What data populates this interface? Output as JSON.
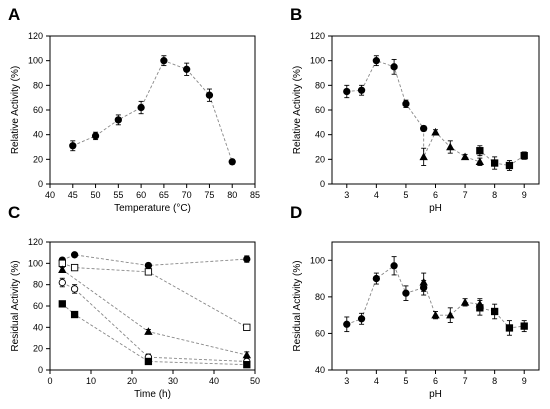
{
  "chart_data": [
    {
      "panel": "A",
      "type": "scatter",
      "title": "",
      "xlabel": "Temperature (°C)",
      "ylabel": "Relative Activity (%)",
      "xlim": [
        40,
        85
      ],
      "ylim": [
        0,
        120
      ],
      "xticks": [
        40,
        45,
        50,
        55,
        60,
        65,
        70,
        75,
        80,
        85
      ],
      "yticks": [
        0,
        20,
        40,
        60,
        80,
        100,
        120
      ],
      "grid": false,
      "series": [
        {
          "marker": "filled-circle",
          "connect": true,
          "points": [
            {
              "x": 45,
              "y": 31,
              "err": 4
            },
            {
              "x": 50,
              "y": 39,
              "err": 3
            },
            {
              "x": 55,
              "y": 52,
              "err": 4
            },
            {
              "x": 60,
              "y": 62,
              "err": 5
            },
            {
              "x": 65,
              "y": 100,
              "err": 4
            },
            {
              "x": 70,
              "y": 93,
              "err": 5
            },
            {
              "x": 75,
              "y": 72,
              "err": 5
            },
            {
              "x": 80,
              "y": 18,
              "err": 2
            }
          ]
        }
      ]
    },
    {
      "panel": "B",
      "type": "scatter",
      "title": "",
      "xlabel": "pH",
      "ylabel": "Relative Activity (%)",
      "xlim": [
        2.5,
        9.5
      ],
      "ylim": [
        0,
        120
      ],
      "xticks": [
        3,
        4,
        5,
        6,
        7,
        8,
        9
      ],
      "yticks": [
        0,
        20,
        40,
        60,
        80,
        100,
        120
      ],
      "grid": false,
      "series": [
        {
          "marker": "filled-circle",
          "connect": true,
          "points": [
            {
              "x": 3.0,
              "y": 75,
              "err": 5
            },
            {
              "x": 3.5,
              "y": 76,
              "err": 4
            },
            {
              "x": 4.0,
              "y": 100,
              "err": 4
            },
            {
              "x": 4.6,
              "y": 95,
              "err": 6
            },
            {
              "x": 5.0,
              "y": 65,
              "err": 3
            },
            {
              "x": 5.6,
              "y": 45,
              "err": 2
            }
          ]
        },
        {
          "marker": "filled-triangle",
          "connect": true,
          "points": [
            {
              "x": 5.6,
              "y": 22,
              "err": 7
            },
            {
              "x": 6.0,
              "y": 42,
              "err": 2
            },
            {
              "x": 6.5,
              "y": 30,
              "err": 5
            },
            {
              "x": 7.0,
              "y": 22,
              "err": 2
            },
            {
              "x": 7.5,
              "y": 18,
              "err": 3
            }
          ]
        },
        {
          "marker": "filled-square",
          "connect": true,
          "points": [
            {
              "x": 7.5,
              "y": 27,
              "err": 4
            },
            {
              "x": 8.0,
              "y": 17,
              "err": 5
            },
            {
              "x": 8.5,
              "y": 15,
              "err": 4
            },
            {
              "x": 9.0,
              "y": 23,
              "err": 3
            }
          ]
        }
      ]
    },
    {
      "panel": "C",
      "type": "scatter",
      "title": "",
      "xlabel": "Time (h)",
      "ylabel": "Residual Activity (%)",
      "xlim": [
        0,
        50
      ],
      "ylim": [
        0,
        120
      ],
      "xticks": [
        0,
        10,
        20,
        30,
        40,
        50
      ],
      "yticks": [
        0,
        20,
        40,
        60,
        80,
        100,
        120
      ],
      "grid": false,
      "series": [
        {
          "marker": "filled-circle",
          "connect": true,
          "points": [
            {
              "x": 3,
              "y": 103,
              "err": 2
            },
            {
              "x": 6,
              "y": 108,
              "err": 2
            },
            {
              "x": 24,
              "y": 98,
              "err": 2
            },
            {
              "x": 48,
              "y": 104,
              "err": 3
            }
          ]
        },
        {
          "marker": "open-square",
          "connect": true,
          "points": [
            {
              "x": 3,
              "y": 100,
              "err": 2
            },
            {
              "x": 6,
              "y": 96,
              "err": 2
            },
            {
              "x": 24,
              "y": 92,
              "err": 2
            },
            {
              "x": 48,
              "y": 40,
              "err": 2
            }
          ]
        },
        {
          "marker": "filled-triangle",
          "connect": true,
          "points": [
            {
              "x": 3,
              "y": 94,
              "err": 2
            },
            {
              "x": 24,
              "y": 36,
              "err": 2
            },
            {
              "x": 48,
              "y": 14,
              "err": 3
            }
          ]
        },
        {
          "marker": "open-circle",
          "connect": true,
          "points": [
            {
              "x": 3,
              "y": 82,
              "err": 4
            },
            {
              "x": 6,
              "y": 76,
              "err": 4
            },
            {
              "x": 24,
              "y": 12,
              "err": 3
            },
            {
              "x": 48,
              "y": 8,
              "err": 3
            }
          ]
        },
        {
          "marker": "filled-square",
          "connect": true,
          "points": [
            {
              "x": 3,
              "y": 62,
              "err": 2
            },
            {
              "x": 6,
              "y": 52,
              "err": 2
            },
            {
              "x": 24,
              "y": 8,
              "err": 2
            },
            {
              "x": 48,
              "y": 5,
              "err": 2
            }
          ]
        }
      ]
    },
    {
      "panel": "D",
      "type": "scatter",
      "title": "",
      "xlabel": "pH",
      "ylabel": "Residual Activity (%)",
      "xlim": [
        2.5,
        9.5
      ],
      "ylim": [
        40,
        110
      ],
      "xticks": [
        3,
        4,
        5,
        6,
        7,
        8,
        9
      ],
      "yticks": [
        40,
        60,
        80,
        100
      ],
      "grid": false,
      "series": [
        {
          "marker": "filled-circle",
          "connect": true,
          "points": [
            {
              "x": 3.0,
              "y": 65,
              "err": 4
            },
            {
              "x": 3.5,
              "y": 68,
              "err": 3
            },
            {
              "x": 4.0,
              "y": 90,
              "err": 3
            },
            {
              "x": 4.6,
              "y": 97,
              "err": 5
            },
            {
              "x": 5.0,
              "y": 82,
              "err": 4
            },
            {
              "x": 5.6,
              "y": 85,
              "err": 4
            }
          ]
        },
        {
          "marker": "filled-triangle",
          "connect": true,
          "points": [
            {
              "x": 5.6,
              "y": 88,
              "err": 5
            },
            {
              "x": 6.0,
              "y": 70,
              "err": 2
            },
            {
              "x": 6.5,
              "y": 70,
              "err": 4
            },
            {
              "x": 7.0,
              "y": 77,
              "err": 2
            },
            {
              "x": 7.5,
              "y": 76,
              "err": 3
            }
          ]
        },
        {
          "marker": "filled-square",
          "connect": true,
          "points": [
            {
              "x": 7.5,
              "y": 74,
              "err": 4
            },
            {
              "x": 8.0,
              "y": 72,
              "err": 4
            },
            {
              "x": 8.5,
              "y": 63,
              "err": 4
            },
            {
              "x": 9.0,
              "y": 64,
              "err": 3
            }
          ]
        }
      ]
    }
  ]
}
